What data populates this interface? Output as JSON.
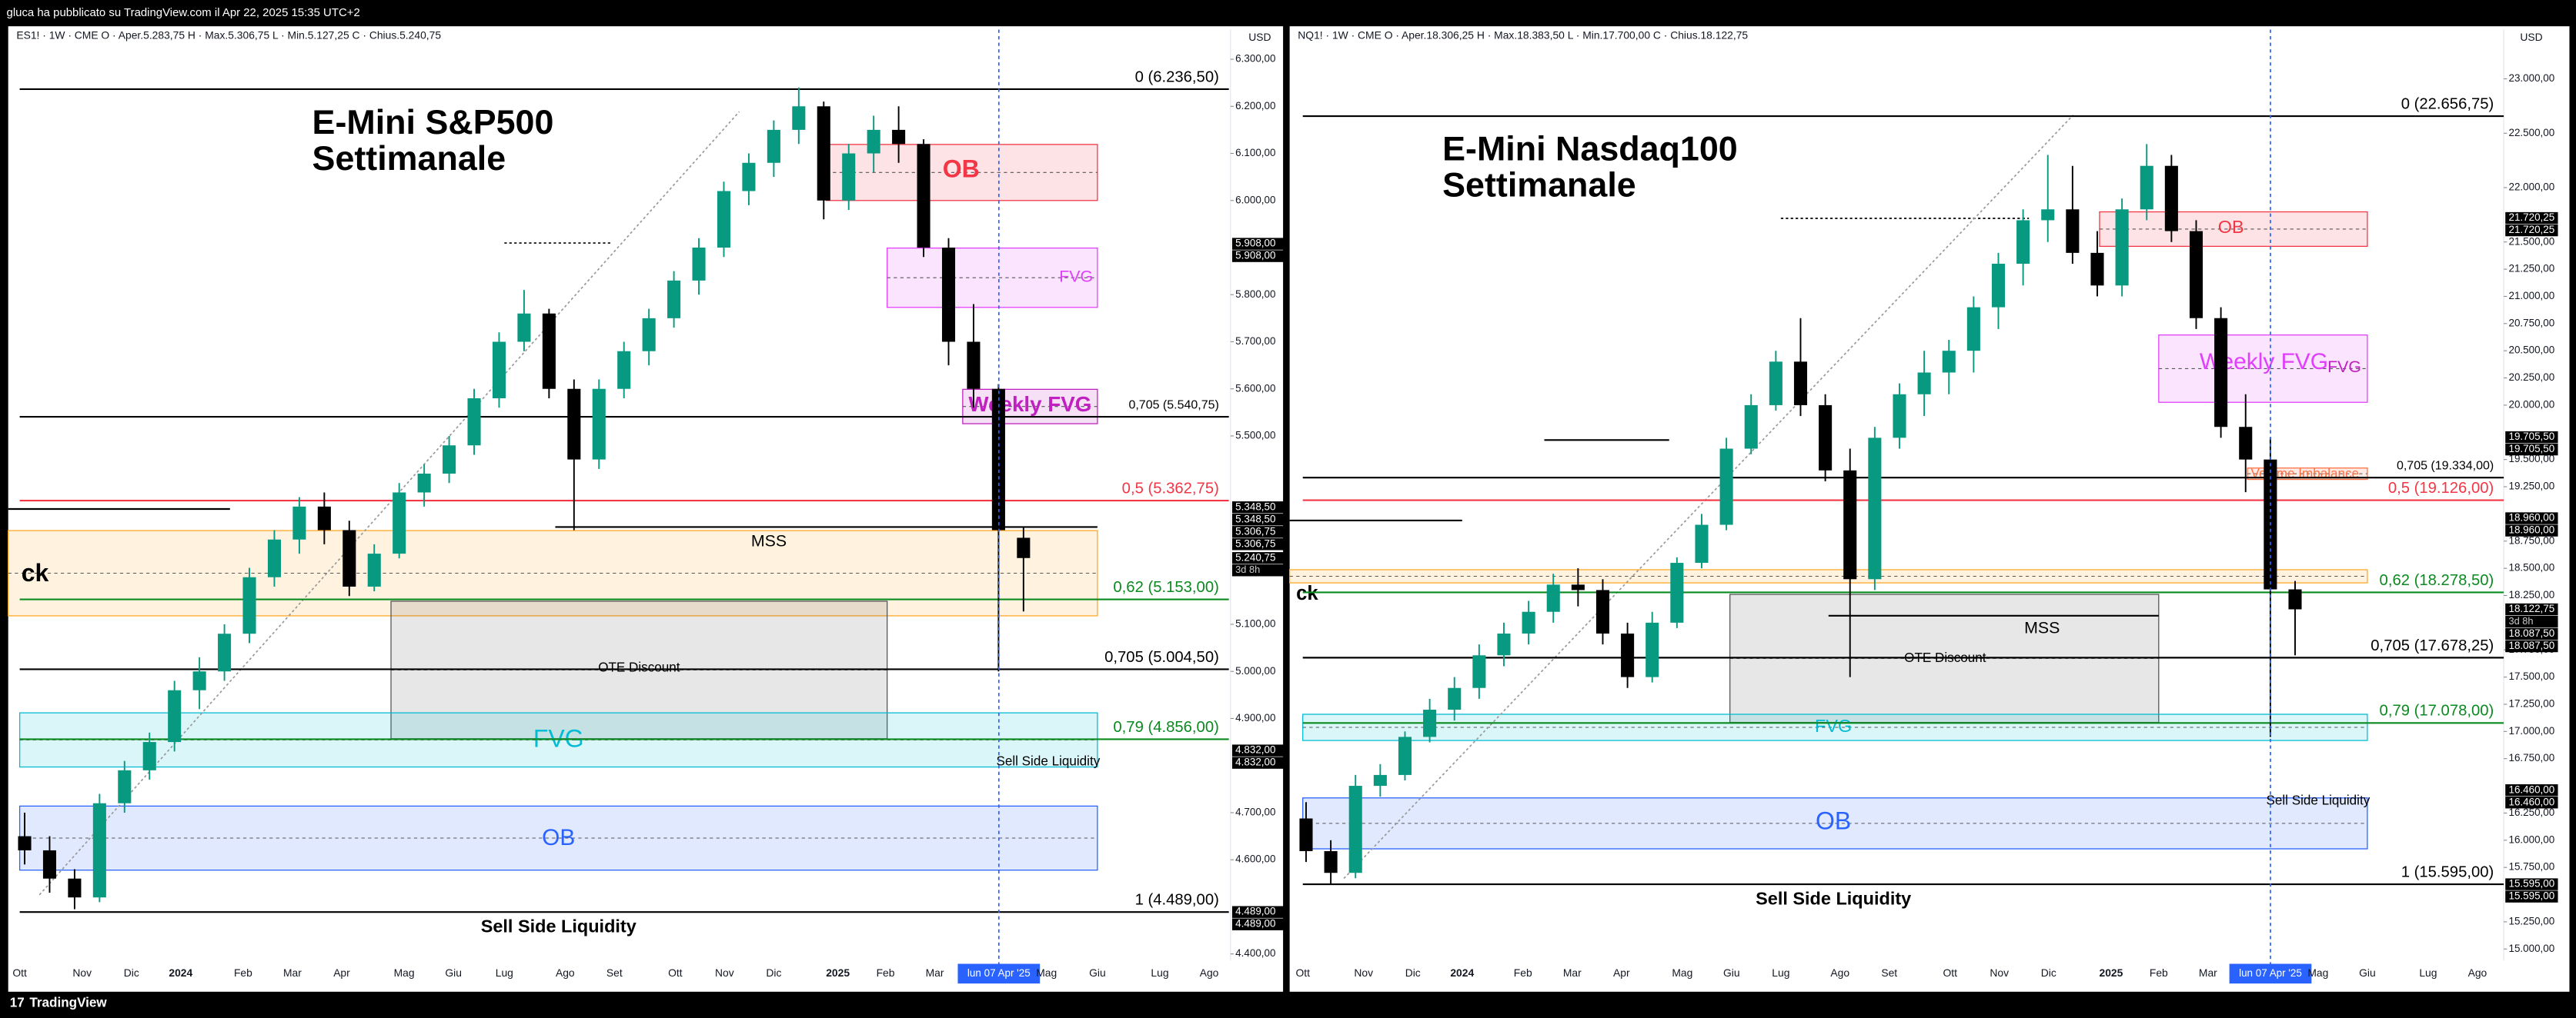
{
  "header": "gluca ha pubblicato su TradingView.com il Apr 22, 2025 15:35 UTC+2",
  "footer": "TradingView",
  "panels": [
    {
      "symbol_line": "ES1! · 1W · CME  O · Aper.5.283,75  H · Max.5.306,75  L · Min.5.127,25  C · Chius.5.240,75",
      "currency": "USD",
      "title": [
        "E-Mini S&P500",
        "Settimanale"
      ],
      "ylim": [
        4386,
        6363
      ],
      "yticks": [
        {
          "value": 6300,
          "label": "6.300,00"
        },
        {
          "value": 6200,
          "label": "6.200,00"
        },
        {
          "value": 6100,
          "label": "6.100,00"
        },
        {
          "value": 6000,
          "label": "6.000,00"
        },
        {
          "value": 5800,
          "label": "5.800,00"
        },
        {
          "value": 5700,
          "label": "5.700,00"
        },
        {
          "value": 5600,
          "label": "5.600,00"
        },
        {
          "value": 5500,
          "label": "5.500,00"
        },
        {
          "value": 5100,
          "label": "5.100,00"
        },
        {
          "value": 5000,
          "label": "5.000,00"
        },
        {
          "value": 4900,
          "label": "4.900,00"
        },
        {
          "value": 4700,
          "label": "4.700,00"
        },
        {
          "value": 4600,
          "label": "4.600,00"
        },
        {
          "value": 4400,
          "label": "4.400,00"
        }
      ],
      "time_labels": [
        "Ott",
        "Nov",
        "Dic",
        "2024",
        "Feb",
        "Mar",
        "Apr",
        "Mag",
        "Giu",
        "Lug",
        "Ago",
        "Set",
        "Ott",
        "Nov",
        "Dic",
        "2025",
        "Feb",
        "Mar",
        "Mag",
        "Giu",
        "Lug",
        "Ago"
      ],
      "date_marker": "lun 07 Apr '25",
      "candles": [
        [
          4650,
          4700,
          4590,
          4620
        ],
        [
          4620,
          4650,
          4530,
          4560
        ],
        [
          4560,
          4580,
          4495,
          4520
        ],
        [
          4520,
          4740,
          4510,
          4720
        ],
        [
          4720,
          4810,
          4700,
          4790
        ],
        [
          4790,
          4870,
          4770,
          4850
        ],
        [
          4850,
          4980,
          4830,
          4960
        ],
        [
          4960,
          5030,
          4920,
          5000
        ],
        [
          5000,
          5100,
          4980,
          5080
        ],
        [
          5080,
          5220,
          5060,
          5200
        ],
        [
          5200,
          5300,
          5180,
          5280
        ],
        [
          5280,
          5370,
          5250,
          5350
        ],
        [
          5350,
          5380,
          5270,
          5300
        ],
        [
          5300,
          5320,
          5160,
          5180
        ],
        [
          5180,
          5270,
          5170,
          5250
        ],
        [
          5250,
          5400,
          5240,
          5380
        ],
        [
          5380,
          5440,
          5350,
          5420
        ],
        [
          5420,
          5500,
          5400,
          5480
        ],
        [
          5480,
          5600,
          5460,
          5580
        ],
        [
          5580,
          5720,
          5560,
          5700
        ],
        [
          5700,
          5810,
          5680,
          5760
        ],
        [
          5760,
          5770,
          5580,
          5600
        ],
        [
          5600,
          5620,
          5300,
          5450
        ],
        [
          5450,
          5620,
          5430,
          5600
        ],
        [
          5600,
          5700,
          5580,
          5680
        ],
        [
          5680,
          5770,
          5650,
          5750
        ],
        [
          5750,
          5850,
          5730,
          5830
        ],
        [
          5830,
          5920,
          5800,
          5900
        ],
        [
          5900,
          6040,
          5880,
          6020
        ],
        [
          6020,
          6100,
          5990,
          6080
        ],
        [
          6080,
          6170,
          6050,
          6150
        ],
        [
          6150,
          6240,
          6120,
          6200
        ],
        [
          6200,
          6210,
          5960,
          6000
        ],
        [
          6000,
          6120,
          5980,
          6100
        ],
        [
          6100,
          6180,
          6060,
          6150
        ],
        [
          6150,
          6200,
          6080,
          6120
        ],
        [
          6120,
          6130,
          5880,
          5900
        ],
        [
          5900,
          5920,
          5650,
          5700
        ],
        [
          5700,
          5780,
          5560,
          5600
        ],
        [
          5600,
          5610,
          5000,
          5300
        ],
        [
          5283.75,
          5306.75,
          5127.25,
          5240.75
        ]
      ],
      "up_color": "#089981",
      "down_color": "#000000",
      "levels": [
        {
          "label": "0 (6.236,50)",
          "value": 6236.5,
          "color": "#000000"
        },
        {
          "label": "0,705 (5.540,75)",
          "value": 5540.75,
          "color": "#000000"
        },
        {
          "label": "0,5 (5.362,75)",
          "value": 5362.75,
          "color": "#f23645"
        },
        {
          "label": "0,62 (5.153,00)",
          "value": 5153,
          "color": "#0a8a1f"
        },
        {
          "label": "0,705 (5.004,50)",
          "value": 5004.5,
          "color": "#000000"
        },
        {
          "label": "0,79 (4.856,00)",
          "value": 4856,
          "color": "#0a8a1f"
        },
        {
          "label": "1 (4.489,00)",
          "value": 4489,
          "color": "#000000"
        }
      ],
      "zones": [
        {
          "label": "OB",
          "low": 6000,
          "high": 6119,
          "color": "#f23645"
        },
        {
          "label": "FVG",
          "low": 5773,
          "high": 5899,
          "color": "#e040fb"
        },
        {
          "label": "Weekly FVG",
          "low": 5526,
          "high": 5599,
          "color": "#c020c0"
        },
        {
          "label": "ck",
          "low": 5118,
          "high": 5299,
          "color": "#ffa726"
        },
        {
          "label": "OTE Discount",
          "low": 4857,
          "high": 5149,
          "color": "#555555"
        },
        {
          "label": "FVG",
          "low": 4797,
          "high": 4912,
          "color": "#00bcd4"
        },
        {
          "label": "OB",
          "low": 4578,
          "high": 4714,
          "color": "#2962ff"
        }
      ],
      "annotations": [
        "MSS",
        "Sell Side Liquidity",
        "Sell Side Liquidity"
      ],
      "badges": [
        {
          "value": 5908,
          "label": "5.908,00"
        },
        {
          "value": 5908,
          "label": "5.908,00"
        },
        {
          "value": 5348.5,
          "label": "5.348,50"
        },
        {
          "value": 5348.5,
          "label": "5.348,50"
        },
        {
          "value": 5306.75,
          "label": "5.306,75"
        },
        {
          "value": 5306.75,
          "label": "5.306,75"
        },
        {
          "value": 5240.75,
          "label": "5.240,75"
        },
        {
          "value": 4832,
          "label": "4.832,00"
        },
        {
          "value": 4832,
          "label": "4.832,00"
        },
        {
          "value": 4489,
          "label": "4.489,00"
        },
        {
          "value": 4489,
          "label": "4.489,00"
        }
      ],
      "countdown": "3d 8h"
    },
    {
      "symbol_line": "NQ1! · 1W · CME  O · Aper.18.306,25  H · Max.18.383,50  L · Min.17.700,00  C · Chius.18.122,75",
      "currency": "USD",
      "title": [
        "E-Mini Nasdaq100",
        "Settimanale"
      ],
      "ylim": [
        14894,
        23453
      ],
      "yticks": [
        {
          "value": 23000,
          "label": "23.000,00"
        },
        {
          "value": 22500,
          "label": "22.500,00"
        },
        {
          "value": 22000,
          "label": "22.000,00"
        },
        {
          "value": 21500,
          "label": "21.500,00"
        },
        {
          "value": 21250,
          "label": "21.250,00"
        },
        {
          "value": 21000,
          "label": "21.000,00"
        },
        {
          "value": 20750,
          "label": "20.750,00"
        },
        {
          "value": 20500,
          "label": "20.500,00"
        },
        {
          "value": 20250,
          "label": "20.250,00"
        },
        {
          "value": 20000,
          "label": "20.000,00"
        },
        {
          "value": 19500,
          "label": "19.500,00"
        },
        {
          "value": 19250,
          "label": "19.250,00"
        },
        {
          "value": 18750,
          "label": "18.750,00"
        },
        {
          "value": 18500,
          "label": "18.500,00"
        },
        {
          "value": 18250,
          "label": "18.250,00"
        },
        {
          "value": 17750,
          "label": "17.750,00"
        },
        {
          "value": 17500,
          "label": "17.500,00"
        },
        {
          "value": 17250,
          "label": "17.250,00"
        },
        {
          "value": 17000,
          "label": "17.000,00"
        },
        {
          "value": 16750,
          "label": "16.750,00"
        },
        {
          "value": 16250,
          "label": "16.250,00"
        },
        {
          "value": 16000,
          "label": "16.000,00"
        },
        {
          "value": 15750,
          "label": "15.750,00"
        },
        {
          "value": 15250,
          "label": "15.250,00"
        },
        {
          "value": 15000,
          "label": "15.000,00"
        }
      ],
      "time_labels": [
        "Ott",
        "Nov",
        "Dic",
        "2024",
        "Feb",
        "Mar",
        "Apr",
        "Mag",
        "Giu",
        "Lug",
        "Ago",
        "Set",
        "Ott",
        "Nov",
        "Dic",
        "2025",
        "Feb",
        "Mar",
        "Mag",
        "Giu",
        "Lug",
        "Ago"
      ],
      "date_marker": "lun 07 Apr '25",
      "candles": [
        [
          16200,
          16350,
          15800,
          15900
        ],
        [
          15900,
          16000,
          15595,
          15700
        ],
        [
          15700,
          16600,
          15650,
          16500
        ],
        [
          16500,
          16700,
          16400,
          16600
        ],
        [
          16600,
          17000,
          16550,
          16950
        ],
        [
          16950,
          17300,
          16900,
          17200
        ],
        [
          17200,
          17500,
          17100,
          17400
        ],
        [
          17400,
          17800,
          17300,
          17700
        ],
        [
          17700,
          18000,
          17600,
          17900
        ],
        [
          17900,
          18200,
          17800,
          18100
        ],
        [
          18100,
          18450,
          18000,
          18350
        ],
        [
          18350,
          18500,
          18150,
          18300
        ],
        [
          18300,
          18400,
          17800,
          17900
        ],
        [
          17900,
          18000,
          17400,
          17500
        ],
        [
          17500,
          18100,
          17450,
          18000
        ],
        [
          18000,
          18600,
          17950,
          18550
        ],
        [
          18550,
          19000,
          18500,
          18900
        ],
        [
          18900,
          19700,
          18850,
          19600
        ],
        [
          19600,
          20100,
          19550,
          20000
        ],
        [
          20000,
          20500,
          19950,
          20400
        ],
        [
          20400,
          20800,
          19900,
          20000
        ],
        [
          20000,
          20100,
          19300,
          19400
        ],
        [
          19400,
          19600,
          17500,
          18400
        ],
        [
          18400,
          19800,
          18300,
          19700
        ],
        [
          19700,
          20200,
          19600,
          20100
        ],
        [
          20100,
          20500,
          19900,
          20300
        ],
        [
          20300,
          20600,
          20100,
          20500
        ],
        [
          20500,
          21000,
          20300,
          20900
        ],
        [
          20900,
          21400,
          20700,
          21300
        ],
        [
          21300,
          21800,
          21100,
          21700
        ],
        [
          21700,
          22300,
          21500,
          21800
        ],
        [
          21800,
          22200,
          21300,
          21400
        ],
        [
          21400,
          21600,
          21000,
          21100
        ],
        [
          21100,
          21900,
          21000,
          21800
        ],
        [
          21800,
          22400,
          21700,
          22200
        ],
        [
          22200,
          22300,
          21500,
          21600
        ],
        [
          21600,
          21700,
          20700,
          20800
        ],
        [
          20800,
          20900,
          19700,
          19800
        ],
        [
          19800,
          20100,
          19200,
          19500
        ],
        [
          19500,
          19700,
          16950,
          18306.25
        ],
        [
          18306.25,
          18383.5,
          17700,
          18122.75
        ]
      ],
      "up_color": "#089981",
      "down_color": "#000000",
      "levels": [
        {
          "label": "0 (22.656,75)",
          "value": 22656.75,
          "color": "#000000"
        },
        {
          "label": "0,705 (19.334,00)",
          "value": 19334,
          "color": "#000000"
        },
        {
          "label": "0,5 (19.126,00)",
          "value": 19126,
          "color": "#f23645"
        },
        {
          "label": "0,62 (18.278,50)",
          "value": 18278.5,
          "color": "#0a8a1f"
        },
        {
          "label": "0,705 (17.678,25)",
          "value": 17678.25,
          "color": "#000000"
        },
        {
          "label": "0,79 (17.078,00)",
          "value": 17078,
          "color": "#0a8a1f"
        },
        {
          "label": "1 (15.595,00)",
          "value": 15595,
          "color": "#000000"
        }
      ],
      "zones": [
        {
          "label": "OB",
          "low": 21460,
          "high": 21777,
          "color": "#f23645"
        },
        {
          "label": "Weekly FVG",
          "low": 20026,
          "high": 20645,
          "color": "#e040fb"
        },
        {
          "label": "Volume Imbalance",
          "low": 19317,
          "high": 19422,
          "color": "#ff7043"
        },
        {
          "label": "ck",
          "low": 18366,
          "high": 18487,
          "color": "#ffa726"
        },
        {
          "label": "OTE Discount",
          "low": 17083,
          "high": 18260,
          "color": "#555555"
        },
        {
          "label": "FVG",
          "low": 16917,
          "high": 17158,
          "color": "#00bcd4"
        },
        {
          "label": "OB",
          "low": 15921,
          "high": 16389,
          "color": "#2962ff"
        }
      ],
      "annotations": [
        "MSS",
        "Sell Side Liquidity",
        "Sell Side Liquidity",
        "FVG"
      ],
      "badges": [
        {
          "value": 21720.25,
          "label": "21.720,25"
        },
        {
          "value": 21720.25,
          "label": "21.720,25"
        },
        {
          "value": 19705.5,
          "label": "19.705,50"
        },
        {
          "value": 19705.5,
          "label": "19.705,50"
        },
        {
          "value": 18960,
          "label": "18.960,00"
        },
        {
          "value": 18960,
          "label": "18.960,00"
        },
        {
          "value": 18122.75,
          "label": "18.122,75"
        },
        {
          "value": 18087.5,
          "label": "18.087,50"
        },
        {
          "value": 18087.5,
          "label": "18.087,50"
        },
        {
          "value": 16460,
          "label": "16.460,00"
        },
        {
          "value": 16460,
          "label": "16.460,00"
        },
        {
          "value": 15595,
          "label": "15.595,00"
        },
        {
          "value": 15595,
          "label": "15.595,00"
        }
      ],
      "countdown": "3d 8h"
    }
  ]
}
